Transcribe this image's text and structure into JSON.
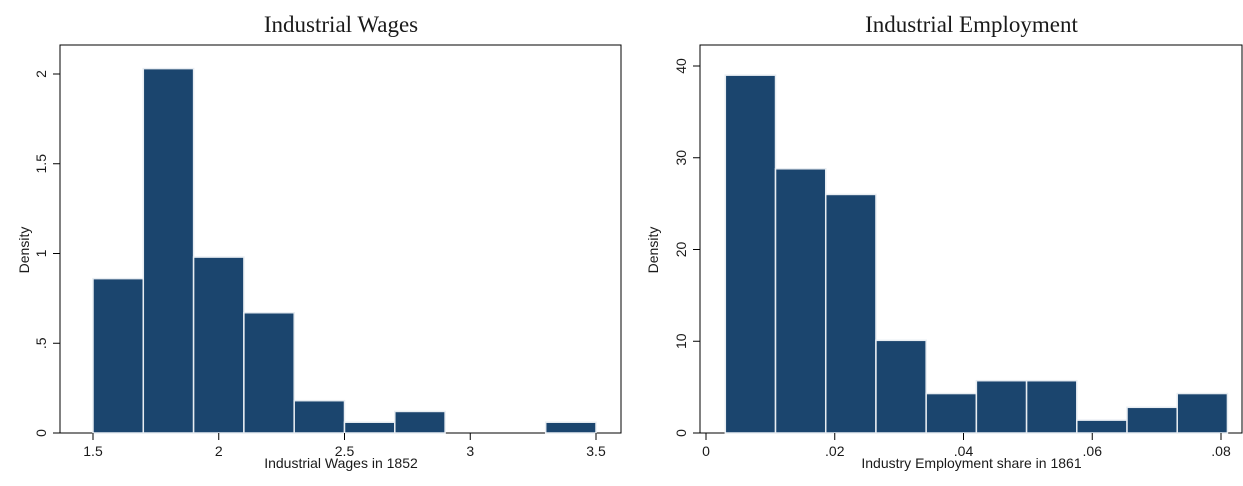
{
  "chart_data": [
    {
      "type": "bar",
      "title": "Industrial Wages",
      "xlabel": "Industrial Wages in 1852",
      "ylabel": "Density",
      "xlim": [
        1.5,
        3.5
      ],
      "ylim": [
        0,
        2
      ],
      "x_ticks": [
        1.5,
        2,
        2.5,
        3,
        3.5
      ],
      "x_tick_labels": [
        "1.5",
        "2",
        "2.5",
        "3",
        "3.5"
      ],
      "y_ticks": [
        0,
        0.5,
        1,
        1.5,
        2
      ],
      "y_tick_labels": [
        "0",
        ".5",
        "1",
        "1.5",
        "2"
      ],
      "bins": [
        {
          "start": 1.5,
          "end": 1.7,
          "value": 0.86
        },
        {
          "start": 1.7,
          "end": 1.9,
          "value": 2.03
        },
        {
          "start": 1.9,
          "end": 2.1,
          "value": 0.98
        },
        {
          "start": 2.1,
          "end": 2.3,
          "value": 0.67
        },
        {
          "start": 2.3,
          "end": 2.5,
          "value": 0.18
        },
        {
          "start": 2.5,
          "end": 2.7,
          "value": 0.06
        },
        {
          "start": 2.7,
          "end": 2.9,
          "value": 0.12
        },
        {
          "start": 2.9,
          "end": 3.1,
          "value": 0
        },
        {
          "start": 3.1,
          "end": 3.3,
          "value": 0
        },
        {
          "start": 3.3,
          "end": 3.5,
          "value": 0.06
        }
      ],
      "bar_color": "#1b456e",
      "bar_edge_color": "#e8edf2",
      "grid": false
    },
    {
      "type": "bar",
      "title": "Industrial Employment",
      "xlabel": "Industry Employment share in 1861",
      "ylabel": "Density",
      "xlim": [
        0,
        0.08
      ],
      "ylim": [
        0,
        40
      ],
      "x_ticks": [
        0,
        0.02,
        0.04,
        0.06,
        0.08
      ],
      "x_tick_labels": [
        "0",
        ".02",
        ".04",
        ".06",
        ".08"
      ],
      "y_ticks": [
        0,
        10,
        20,
        30,
        40
      ],
      "y_tick_labels": [
        "0",
        "10",
        "20",
        "30",
        "40"
      ],
      "bins": [
        {
          "start": 0.003,
          "end": 0.0108,
          "value": 39.0
        },
        {
          "start": 0.0108,
          "end": 0.0186,
          "value": 28.8
        },
        {
          "start": 0.0186,
          "end": 0.0264,
          "value": 26.0
        },
        {
          "start": 0.0264,
          "end": 0.0342,
          "value": 10.1
        },
        {
          "start": 0.0342,
          "end": 0.042,
          "value": 4.3
        },
        {
          "start": 0.042,
          "end": 0.0498,
          "value": 5.7
        },
        {
          "start": 0.0498,
          "end": 0.0576,
          "value": 5.7
        },
        {
          "start": 0.0576,
          "end": 0.0654,
          "value": 1.4
        },
        {
          "start": 0.0654,
          "end": 0.0732,
          "value": 2.8
        },
        {
          "start": 0.0732,
          "end": 0.081,
          "value": 4.3
        }
      ],
      "bar_color": "#1b456e",
      "bar_edge_color": "#e8edf2",
      "grid": false
    }
  ]
}
